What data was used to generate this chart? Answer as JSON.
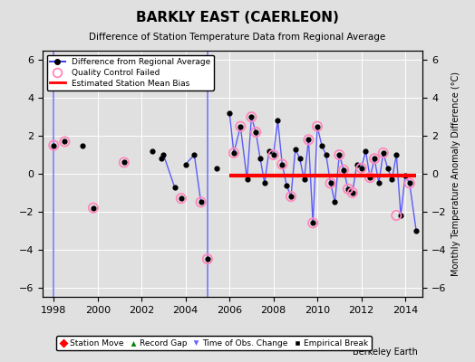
{
  "title": "BARKLY EAST (CAERLEON)",
  "subtitle": "Difference of Station Temperature Data from Regional Average",
  "ylabel": "Monthly Temperature Anomaly Difference (°C)",
  "credit": "Berkeley Earth",
  "xlim": [
    1997.5,
    2014.8
  ],
  "ylim": [
    -6.5,
    6.5
  ],
  "yticks": [
    -6,
    -4,
    -2,
    0,
    2,
    4,
    6
  ],
  "xticks": [
    1998,
    2000,
    2002,
    2004,
    2006,
    2008,
    2010,
    2012,
    2014
  ],
  "bias_level": -0.1,
  "bias_start": 2006.0,
  "bias_end": 2014.5,
  "bg_color": "#e0e0e0",
  "line_color": "#4444ff",
  "dot_color": "#000000",
  "qc_edge_color": "#ff88bb",
  "bias_color": "#ff0000",
  "vline_color": "#6666ff",
  "segments": [
    {
      "x": [
        1998.0,
        1998.08
      ],
      "y": [
        1.5,
        5.5
      ]
    },
    {
      "x": [
        2005.0,
        2005.08
      ],
      "y": [
        3.3,
        -6.2
      ]
    }
  ],
  "scatter_early": {
    "x": [
      1998.0,
      1998.5,
      1999.3,
      1999.8,
      2001.2,
      2002.5,
      2002.9,
      2003.0,
      2003.5,
      2003.8,
      2004.0,
      2004.4,
      2004.7,
      2005.0,
      2005.4
    ],
    "y": [
      1.5,
      1.7,
      1.5,
      -1.8,
      0.6,
      1.2,
      0.8,
      1.0,
      -0.7,
      -1.3,
      0.5,
      1.0,
      -1.5,
      -4.5,
      0.3
    ]
  },
  "line_segments_early": [
    {
      "x": [
        2003.0,
        2003.5
      ],
      "y": [
        1.0,
        -0.7
      ]
    },
    {
      "x": [
        2004.0,
        2004.4
      ],
      "y": [
        0.5,
        1.0
      ]
    },
    {
      "x": [
        2004.4,
        2004.7
      ],
      "y": [
        1.0,
        -1.5
      ]
    }
  ],
  "main_line": {
    "x": [
      2006.0,
      2006.2,
      2006.5,
      2006.8,
      2007.0,
      2007.2,
      2007.4,
      2007.6,
      2007.8,
      2008.0,
      2008.2,
      2008.4,
      2008.6,
      2008.8,
      2009.0,
      2009.2,
      2009.4,
      2009.6,
      2009.8,
      2010.0,
      2010.2,
      2010.4,
      2010.6,
      2010.8,
      2011.0,
      2011.2,
      2011.4,
      2011.6,
      2011.8,
      2012.0,
      2012.2,
      2012.4,
      2012.6,
      2012.8,
      2013.0,
      2013.2,
      2013.4,
      2013.6,
      2013.8,
      2014.0,
      2014.2,
      2014.5
    ],
    "y": [
      3.2,
      1.1,
      2.5,
      -0.3,
      3.0,
      2.2,
      0.8,
      -0.5,
      1.2,
      1.0,
      2.8,
      0.5,
      -0.6,
      -1.2,
      1.3,
      0.8,
      -0.3,
      1.8,
      -2.6,
      2.5,
      1.5,
      1.0,
      -0.5,
      -1.5,
      1.0,
      0.2,
      -0.8,
      -1.0,
      0.5,
      0.3,
      1.2,
      -0.2,
      0.8,
      -0.5,
      1.1,
      0.3,
      -0.3,
      1.0,
      -2.2,
      -0.1,
      -0.5,
      -3.0
    ]
  },
  "qc_failed": {
    "x": [
      1998.0,
      1998.5,
      1999.8,
      2001.2,
      2003.8,
      2004.7,
      2005.0,
      2006.2,
      2006.5,
      2007.0,
      2007.2,
      2008.0,
      2008.4,
      2008.8,
      2009.6,
      2009.8,
      2010.0,
      2010.6,
      2011.0,
      2011.2,
      2011.4,
      2011.6,
      2012.0,
      2012.4,
      2012.6,
      2013.0,
      2013.6,
      2014.2
    ],
    "y": [
      1.5,
      1.7,
      -1.8,
      0.6,
      -1.3,
      -1.5,
      -4.5,
      1.1,
      2.5,
      3.0,
      2.2,
      1.0,
      0.5,
      -1.2,
      1.8,
      -2.6,
      2.5,
      -0.5,
      1.0,
      0.2,
      -0.8,
      -1.0,
      0.3,
      -0.2,
      0.8,
      1.1,
      -2.2,
      -0.5
    ]
  }
}
